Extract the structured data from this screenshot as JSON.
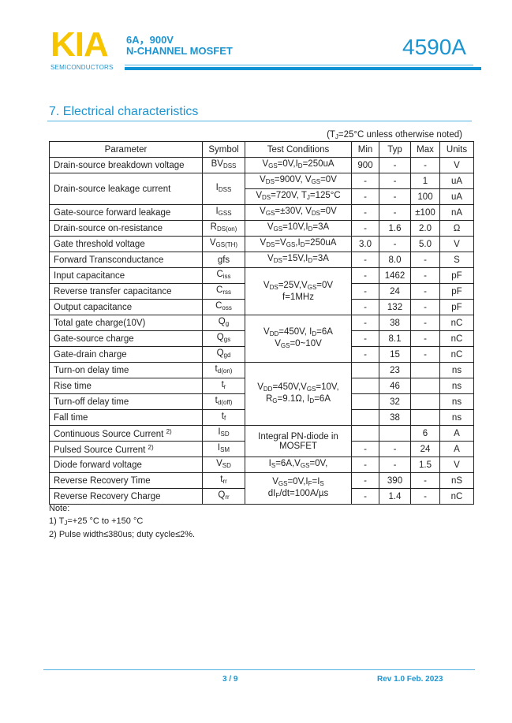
{
  "header": {
    "logo": "KIA",
    "logo_sub": "SEMICONDUCTORS",
    "rating": "6A，900V",
    "type": "N-CHANNEL MOSFET",
    "part_number": "4590A"
  },
  "section": {
    "title": "7.  Electrical characteristics",
    "condition_note": "(T{J}=25°C unless otherwise noted)"
  },
  "table": {
    "headers": [
      "Parameter",
      "Symbol",
      "Test Conditions",
      "Min",
      "Typ",
      "Max",
      "Units"
    ],
    "rows": [
      {
        "param": "Drain-source breakdown voltage",
        "symbol": "BV{DSS}",
        "cond": "V{GS}=0V,I{D}=250uA",
        "min": "900",
        "typ": "-",
        "max": "-",
        "unit": "V"
      },
      {
        "param": "Drain-source leakage current",
        "symbol": "I{DSS}",
        "cond": "V{DS}=900V, V{GS}=0V",
        "min": "-",
        "typ": "-",
        "max": "1",
        "unit": "uA"
      },
      {
        "cond": "V{DS}=720V, T{J}=125°C",
        "min": "-",
        "typ": "-",
        "max": "100",
        "unit": "uA"
      },
      {
        "param": "Gate-source forward leakage",
        "symbol": "I{GSS}",
        "cond": "V{GS}=±30V, V{DS}=0V",
        "min": "-",
        "typ": "-",
        "max": "±100",
        "unit": "nA"
      },
      {
        "param": "Drain-source on-resistance",
        "symbol": "R{DS(on)}",
        "cond": "V{GS}=10V,I{D}=3A",
        "min": "-",
        "typ": "1.6",
        "max": "2.0",
        "unit": "Ω"
      },
      {
        "param": "Gate threshold voltage",
        "symbol": "V{GS(TH)}",
        "cond": "V{DS}=V{GS},I{D}=250uA",
        "min": "3.0",
        "typ": "-",
        "max": "5.0",
        "unit": "V"
      },
      {
        "param": "Forward Transconductance",
        "symbol": "gfs",
        "cond": "V{DS}=15V,I{D}=3A",
        "min": "-",
        "typ": "8.0",
        "max": "-",
        "unit": "S"
      },
      {
        "param": "Input capacitance",
        "symbol": "C{iss}",
        "cond": "V{DS}=25V,V{GS}=0V|f=1MHz",
        "min": "-",
        "typ": "1462",
        "max": "-",
        "unit": "pF"
      },
      {
        "param": "Reverse transfer capacitance",
        "symbol": "C{rss}",
        "min": "-",
        "typ": "24",
        "max": "-",
        "unit": "pF"
      },
      {
        "param": "Output capacitance",
        "symbol": "C{oss}",
        "min": "-",
        "typ": "132",
        "max": "-",
        "unit": "pF"
      },
      {
        "param": "Total gate charge(10V)",
        "symbol": "Q{g}",
        "cond": "V{DD}=450V, I{D}=6A|V{GS}=0~10V",
        "min": "-",
        "typ": "38",
        "max": "-",
        "unit": "nC"
      },
      {
        "param": "Gate-source charge",
        "symbol": "Q{gs}",
        "min": "-",
        "typ": "8.1",
        "max": "-",
        "unit": "nC"
      },
      {
        "param": "Gate-drain charge",
        "symbol": "Q{gd}",
        "min": "-",
        "typ": "15",
        "max": "-",
        "unit": "nC"
      },
      {
        "param": "Turn-on delay time",
        "symbol": "t{d(on)}",
        "cond": "V{DD}=450V,V{GS}=10V,|R{G}=9.1Ω, I{D}=6A",
        "min": "",
        "typ": "23",
        "max": "",
        "unit": "ns"
      },
      {
        "param": "Rise time",
        "symbol": "t{r}",
        "min": "",
        "typ": "46",
        "max": "",
        "unit": "ns"
      },
      {
        "param": "Turn-off delay time",
        "symbol": "t{d(off)}",
        "min": "",
        "typ": "32",
        "max": "",
        "unit": "ns"
      },
      {
        "param": "Fall time",
        "symbol": "t{f}",
        "min": "",
        "typ": "38",
        "max": "",
        "unit": "ns"
      },
      {
        "param": "Continuous Source Current ^{2)}",
        "symbol": "I{SD}",
        "cond": "Integral PN-diode in|MOSFET",
        "min": "",
        "typ": "",
        "max": "6",
        "unit": "A"
      },
      {
        "param": "Pulsed Source Current ^{2)}",
        "symbol": "I{SM}",
        "min": "-",
        "typ": "-",
        "max": "24",
        "unit": "A"
      },
      {
        "param": "Diode forward voltage",
        "symbol": "V{SD}",
        "cond": "I{S}=6A,V{GS}=0V,",
        "min": "-",
        "typ": "-",
        "max": "1.5",
        "unit": "V"
      },
      {
        "param": "Reverse Recovery Time",
        "symbol": "t{rr}",
        "cond": "V{GS}=0V,I{F}=I{S}|dI{F}/dt=100A/µs",
        "min": "-",
        "typ": "390",
        "max": "-",
        "unit": "nS"
      },
      {
        "param": "Reverse Recovery Charge",
        "symbol": "Q{rr}",
        "min": "-",
        "typ": "1.4",
        "max": "-",
        "unit": "nC"
      }
    ]
  },
  "notes": {
    "title": "Note:",
    "items": [
      "1) T{J}=+25 °C to +150 °C",
      "2) Pulse width≤380us; duty cycle≤2%."
    ]
  },
  "footer": {
    "page": "3 / 9",
    "revision": "Rev 1.0 Feb. 2023"
  },
  "colors": {
    "brand_blue": "#1b95d2",
    "logo_yellow": "#f7c400"
  }
}
